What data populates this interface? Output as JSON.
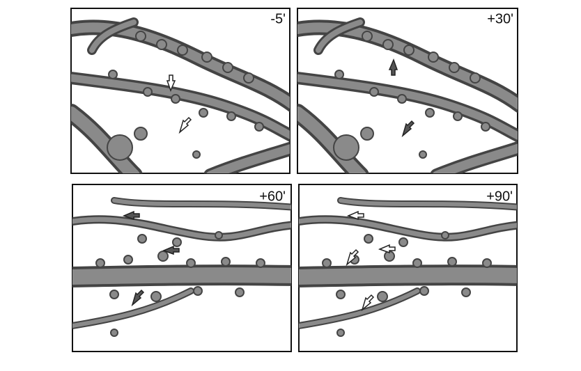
{
  "panels": [
    {
      "label": "-5'"
    },
    {
      "label": "+30'"
    },
    {
      "label": "+60'"
    },
    {
      "label": "+90'"
    }
  ]
}
